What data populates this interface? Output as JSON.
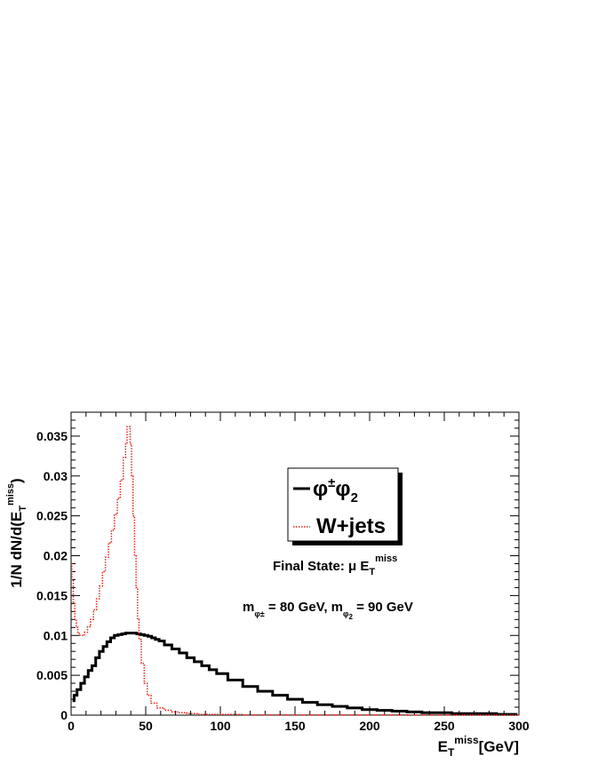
{
  "chart_data": {
    "type": "line",
    "title": "",
    "xlabel": {
      "main": "E",
      "sub": "T",
      "sup": "miss",
      "unit": "[GeV]"
    },
    "ylabel": {
      "prefix": "1/N dN/d(E",
      "sub": "T",
      "sup": "miss",
      "suffix": ")"
    },
    "xlim": [
      0,
      300
    ],
    "ylim": [
      0,
      0.038
    ],
    "x_ticks": [
      0,
      50,
      100,
      150,
      200,
      250,
      300
    ],
    "x_tick_labels": [
      "0",
      "50",
      "100",
      "150",
      "200",
      "250",
      "300"
    ],
    "y_ticks": [
      0,
      0.005,
      0.01,
      0.015,
      0.02,
      0.025,
      0.03,
      0.035
    ],
    "y_tick_labels": [
      "0",
      "0.005",
      "0.01",
      "0.015",
      "0.02",
      "0.025",
      "0.03",
      "0.035"
    ],
    "grid": false,
    "legend_position": "upper-right",
    "series": [
      {
        "name": "φ±φ2",
        "style": "solid-step",
        "color": "#000000",
        "x": [
          1,
          3,
          5,
          8,
          10,
          13,
          15,
          18,
          20,
          23,
          25,
          28,
          30,
          33,
          35,
          38,
          40,
          43,
          45,
          48,
          50,
          53,
          55,
          58,
          60,
          65,
          70,
          75,
          80,
          85,
          90,
          95,
          100,
          110,
          120,
          130,
          140,
          150,
          160,
          170,
          180,
          190,
          200,
          210,
          220,
          230,
          240,
          250,
          260,
          270,
          280,
          290,
          299
        ],
        "values": [
          0.0018,
          0.0025,
          0.0032,
          0.004,
          0.0048,
          0.0056,
          0.0062,
          0.0072,
          0.008,
          0.0086,
          0.0092,
          0.0097,
          0.01,
          0.0101,
          0.0102,
          0.0103,
          0.0103,
          0.0103,
          0.0102,
          0.0101,
          0.01,
          0.0099,
          0.0097,
          0.0095,
          0.0093,
          0.0088,
          0.0083,
          0.0078,
          0.0072,
          0.0067,
          0.0062,
          0.0057,
          0.0052,
          0.0044,
          0.0036,
          0.003,
          0.0025,
          0.002,
          0.0016,
          0.0013,
          0.0011,
          0.0009,
          0.0007,
          0.0006,
          0.0005,
          0.0004,
          0.0003,
          0.0003,
          0.0002,
          0.0002,
          0.0002,
          0.0001,
          0.0001
        ]
      },
      {
        "name": "W+jets",
        "style": "dotted-step",
        "color": "#e8231a",
        "x": [
          0,
          1,
          2,
          3,
          4,
          5,
          6,
          8,
          10,
          12,
          14,
          16,
          18,
          20,
          22,
          24,
          26,
          28,
          30,
          32,
          34,
          36,
          37,
          38,
          39,
          40,
          41,
          42,
          43,
          44,
          45,
          46,
          48,
          50,
          52,
          55,
          60,
          65,
          70,
          75,
          80,
          90,
          100,
          110,
          120,
          140,
          160,
          200,
          250,
          300
        ],
        "values": [
          0.019,
          0.017,
          0.014,
          0.012,
          0.011,
          0.0104,
          0.01,
          0.01,
          0.0104,
          0.0111,
          0.012,
          0.0132,
          0.0146,
          0.0162,
          0.018,
          0.0198,
          0.0216,
          0.0232,
          0.0252,
          0.0272,
          0.0295,
          0.0323,
          0.034,
          0.0362,
          0.0362,
          0.034,
          0.03,
          0.025,
          0.02,
          0.016,
          0.012,
          0.0095,
          0.0065,
          0.004,
          0.0025,
          0.0015,
          0.0009,
          0.0006,
          0.0004,
          0.0003,
          0.0002,
          0.0001,
          0.0001,
          0.0001,
          5e-05,
          5e-05,
          3e-05,
          2e-05,
          1e-05,
          1e-05
        ]
      }
    ],
    "legend": {
      "entries": [
        {
          "label_main": "φ",
          "label_sup": "±",
          "label_main2": "φ",
          "label_sub": "2"
        },
        {
          "label": "W+jets"
        }
      ]
    },
    "annotations": {
      "final_state": {
        "prefix": "Final State: μ  E",
        "sub": "T",
        "sup": "miss"
      },
      "masses": {
        "m1": "m",
        "m1_sub": "φ±",
        "m1_val": " = 80 GeV, m",
        "m2_sub": "φ",
        "m2_subsub": "2",
        "m2_val": "  = 90 GeV"
      }
    }
  }
}
